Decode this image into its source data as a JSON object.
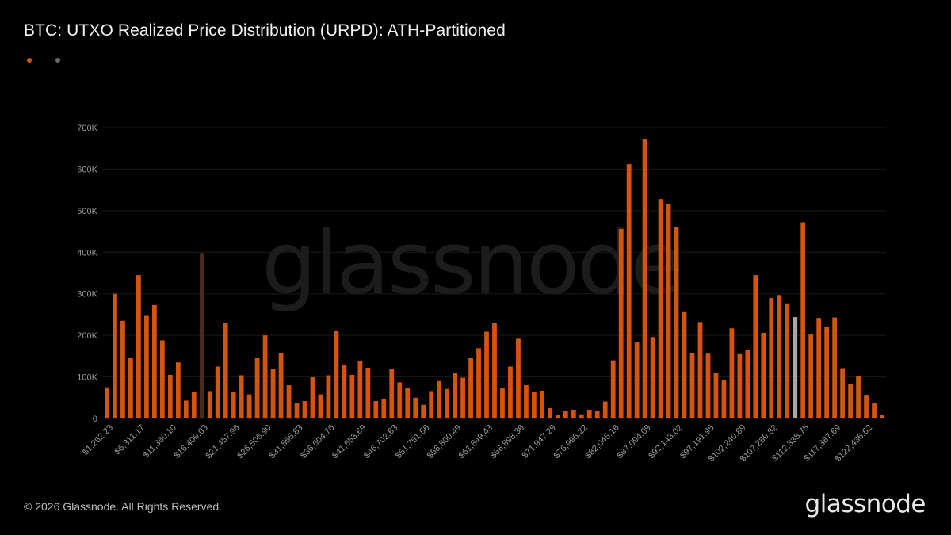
{
  "title": "BTC: UTXO Realized Price Distribution (URPD): ATH-Partitioned",
  "brand": "glassnode",
  "footer": "© 2026 Glassnode. All Rights Reserved.",
  "colors": {
    "primary": "#d4550e",
    "ath": "#4a2a1a",
    "current": "#a8a8a8",
    "grid": "#1a1a1a",
    "axis_text": "#9a9a9a"
  },
  "chart_data": {
    "type": "bar",
    "y_ticks": [
      "0",
      "100K",
      "200K",
      "300K",
      "400K",
      "500K",
      "600K",
      "700K"
    ],
    "ylim": [
      0,
      700000
    ],
    "x_tick_labels": [
      "$1,262.23",
      "$6,311.17",
      "$11,360.10",
      "$16,409.03",
      "$21,457.96",
      "$26,506.90",
      "$31,555.83",
      "$36,604.76",
      "$41,653.69",
      "$46,702.63",
      "$51,751.56",
      "$56,800.49",
      "$61,849.43",
      "$66,898.36",
      "$71,947.29",
      "$76,996.22",
      "$82,045.16",
      "$87,094.09",
      "$92,143.02",
      "$97,191.95",
      "$102,240.89",
      "$107,289.82",
      "$112,338.75",
      "$117,387.69",
      "$122,436.62"
    ],
    "ath_bar_index": 12,
    "current_bar_index": 87,
    "values": [
      75000,
      300000,
      235000,
      145000,
      345000,
      247000,
      273000,
      188000,
      105000,
      135000,
      43000,
      65000,
      398000,
      66000,
      125000,
      230000,
      65000,
      104000,
      58000,
      145000,
      200000,
      120000,
      158000,
      80000,
      38000,
      42000,
      99000,
      58000,
      104000,
      212000,
      128000,
      105000,
      138000,
      122000,
      42000,
      46000,
      120000,
      87000,
      73000,
      50000,
      33000,
      66000,
      90000,
      71000,
      110000,
      98000,
      145000,
      169000,
      209000,
      230000,
      73000,
      125000,
      192000,
      80000,
      64000,
      67000,
      25000,
      8000,
      18000,
      21000,
      10000,
      21000,
      18000,
      41000,
      140000,
      456000,
      612000,
      183000,
      673000,
      196000,
      528000,
      516000,
      460000,
      256000,
      158000,
      232000,
      156000,
      109000,
      92000,
      217000,
      155000,
      164000,
      345000,
      206000,
      290000,
      297000,
      277000,
      244000,
      472000,
      202000,
      242000,
      220000,
      243000,
      121000,
      84000,
      101000,
      57000,
      37000,
      9000
    ]
  }
}
